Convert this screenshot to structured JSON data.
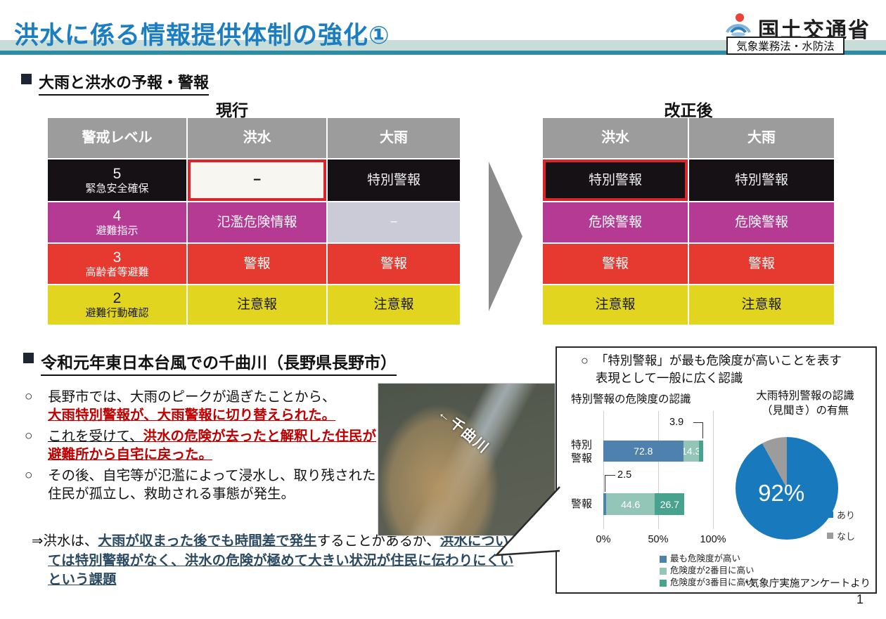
{
  "header": {
    "title": "洪水に係る情報提供体制の強化①",
    "agency": "国土交通省",
    "law_badge": "気象業務法・水防法"
  },
  "palette": {
    "title_blue": "#1b7dc2",
    "band_light": "#c8ddd8",
    "band_dark": "#2e8ca4",
    "header_gray": "#9c9c9c",
    "level5_black": "#151114",
    "level4_magenta": "#b43a93",
    "level3_red": "#e6392f",
    "level2_yellow": "#e2d51f",
    "none_lavender": "#cacbd6",
    "highlight_border_red": "#da2429",
    "emphasis_red": "#c00000",
    "emphasis_navy": "#2b4a61"
  },
  "section1": {
    "heading": "大雨と洪水の予報・警報",
    "current_label": "現行",
    "revised_label": "改正後",
    "current_table": {
      "headers": [
        "警戒レベル",
        "洪水",
        "大雨"
      ],
      "rows": [
        {
          "level": "5",
          "action": "緊急安全確保",
          "flood": "−",
          "rain": "特別警報"
        },
        {
          "level": "4",
          "action": "避難指示",
          "flood": "氾濫危険情報",
          "rain": "−"
        },
        {
          "level": "3",
          "action": "高齢者等避難",
          "flood": "警報",
          "rain": "警報"
        },
        {
          "level": "2",
          "action": "避難行動確認",
          "flood": "注意報",
          "rain": "注意報"
        }
      ]
    },
    "revised_table": {
      "headers": [
        "洪水",
        "大雨"
      ],
      "rows": [
        {
          "flood": "特別警報",
          "rain": "特別警報"
        },
        {
          "flood": "危険警報",
          "rain": "危険警報"
        },
        {
          "flood": "警報",
          "rain": "警報"
        },
        {
          "flood": "注意報",
          "rain": "注意報"
        }
      ]
    }
  },
  "section2": {
    "heading": "令和元年東日本台風での千曲川（長野県長野市）",
    "bullets": [
      {
        "marker": "○",
        "plain": "長野市では、大雨のピークが過ぎたことから、",
        "emphasis": "大雨特別警報が、大雨警報に切り替えられた。"
      },
      {
        "marker": "○",
        "plain": "これを受けて、",
        "emphasis": "洪水の危険が去ったと解釈した住民が避難所から自宅に戻った。"
      },
      {
        "marker": "○",
        "plain": "その後、自宅等が氾濫によって浸水し、取り残された住民が孤立し、救助される事態が発生。",
        "emphasis": ""
      }
    ],
    "conclusion": {
      "prefix": "⇒洪水は、",
      "em1": "大雨が収まった後でも時間差で発生",
      "mid": "することがあるが、",
      "em2": "洪水については特別警報がなく、洪水の危険が極めて大きい状況が住民に伝わりにくいという課題"
    },
    "photo_label": "←千曲川"
  },
  "panel": {
    "note_marker": "○",
    "note_line1": "「特別警報」が最も危険度が高いことを表す",
    "note_line2": "表現として一般に広く認識",
    "source": "*気象庁実施アンケートより"
  },
  "chart_data": [
    {
      "type": "bar",
      "title": "特別警報の危険度の認識",
      "orientation": "horizontal",
      "categories": [
        "特別警報",
        "警報"
      ],
      "series": [
        {
          "name": "最も危険度が高い",
          "color": "#4e81ae",
          "values": [
            72.8,
            2.5
          ]
        },
        {
          "name": "危険度が2番目に高い",
          "color": "#93c6b7",
          "values": [
            14.3,
            44.6
          ]
        },
        {
          "name": "危険度が3番目に高い",
          "color": "#47a38d",
          "values": [
            3.9,
            26.7
          ]
        }
      ],
      "x_ticks": [
        "0%",
        "50%",
        "100%"
      ],
      "xlim": [
        0,
        100
      ],
      "grid": true,
      "legend_position": "bottom",
      "callouts": [
        "3.9",
        "2.5"
      ]
    },
    {
      "type": "pie",
      "title_line1": "大雨特別警報の認識",
      "title_line2": "（見聞き）の有無",
      "slices": [
        {
          "label": "あり",
          "value": 92,
          "display": "92%",
          "color": "#1879bc"
        },
        {
          "label": "なし",
          "value": 8,
          "display": "",
          "color": "#9c9c9c"
        }
      ],
      "legend_position": "right"
    }
  ],
  "page_number": "1"
}
